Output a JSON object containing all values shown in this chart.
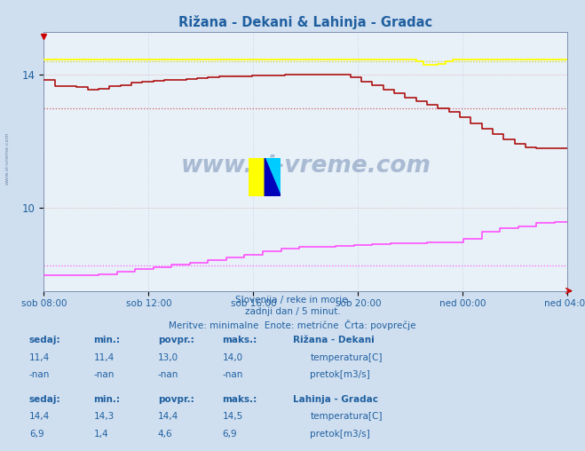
{
  "title": "Rižana - Dekani & Lahinja - Gradac",
  "bg_color": "#d0dff0",
  "plot_bg_color": "#e8f0f8",
  "grid_color": "#c0cce0",
  "grid_color_v": "#c8d4e8",
  "text_color": "#2060a0",
  "xlabel_ticks": [
    "sob 08:00",
    "sob 12:00",
    "sob 16:00",
    "sob 20:00",
    "ned 00:00",
    "ned 04:00"
  ],
  "yticks": [
    10,
    14
  ],
  "footnote1": "Slovenija / reke in morje.",
  "footnote2": "zadnji dan / 5 minut.",
  "footnote3": "Meritve: minimalne  Enote: metrične  Črta: povprečje",
  "watermark": "www.si-vreme.com",
  "rizana_temp_color": "#aa0000",
  "rizana_temp_avg": 13.0,
  "lahinja_temp_color": "#ffff00",
  "lahinja_temp_avg": 14.4,
  "lahinja_pretok_color": "#ff44ff",
  "lahinja_pretok_avg_scaled": 8.27,
  "rizana_pretok_color": "#00cc00",
  "legend": {
    "rizana_name": "Rižana - Dekani",
    "rizana_temp_label": "temperatura[C]",
    "rizana_pretok_label": "pretok[m3/s]",
    "lahinja_name": "Lahinja - Gradac",
    "lahinja_temp_label": "temperatura[C]",
    "lahinja_pretok_label": "pretok[m3/s]"
  },
  "stats": {
    "rizana_sedaj": "11,4",
    "rizana_min": "11,4",
    "rizana_povpr": "13,0",
    "rizana_maks": "14,0",
    "rizana_pretok_sedaj": "-nan",
    "rizana_pretok_min": "-nan",
    "rizana_pretok_povpr": "-nan",
    "rizana_pretok_maks": "-nan",
    "lahinja_sedaj": "14,4",
    "lahinja_min": "14,3",
    "lahinja_povpr": "14,4",
    "lahinja_maks": "14,5",
    "lahinja_pretok_sedaj": "6,9",
    "lahinja_pretok_min": "1,4",
    "lahinja_pretok_povpr": "4,6",
    "lahinja_pretok_maks": "6,9"
  }
}
